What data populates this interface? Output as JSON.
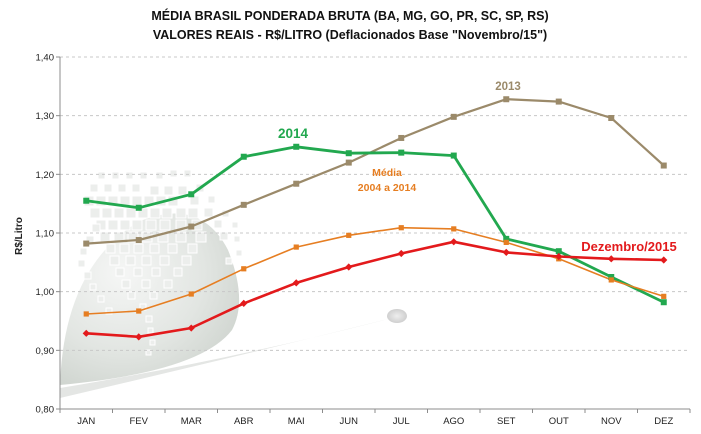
{
  "chart_data": {
    "type": "line",
    "title": "MÉDIA BRASIL PONDERADA BRUTA (BA, MG, GO, PR, SC, SP, RS)",
    "subtitle": "VALORES REAIS - R$/LITRO (Deflacionados Base \"Novembro/15\")",
    "xlabel": "",
    "ylabel": "R$/Litro",
    "ylim": [
      0.8,
      1.4
    ],
    "yticks": [
      "0,80",
      "0,90",
      "1,00",
      "1,10",
      "1,20",
      "1,30",
      "1,40"
    ],
    "ytick_values": [
      0.8,
      0.9,
      1.0,
      1.1,
      1.2,
      1.3,
      1.4
    ],
    "grid": true,
    "categories": [
      "JAN",
      "FEV",
      "MAR",
      "ABR",
      "MAI",
      "JUN",
      "JUL",
      "AGO",
      "SET",
      "OUT",
      "NOV",
      "DEZ"
    ],
    "series": [
      {
        "name": "2013",
        "label": "2013",
        "color": "#9b8a6a",
        "marker": "square",
        "values": [
          1.082,
          1.088,
          1.111,
          1.148,
          1.184,
          1.22,
          1.262,
          1.298,
          1.328,
          1.324,
          1.296,
          1.215
        ]
      },
      {
        "name": "2014",
        "label": "2014",
        "color": "#22a84f",
        "marker": "square",
        "values": [
          1.155,
          1.143,
          1.166,
          1.23,
          1.247,
          1.236,
          1.237,
          1.232,
          1.09,
          1.069,
          1.025,
          0.982
        ]
      },
      {
        "name": "Média 2004 a 2014",
        "label": "Média",
        "label2": "2004 a 2014",
        "color": "#e67e22",
        "marker": "square",
        "values": [
          0.962,
          0.967,
          0.996,
          1.039,
          1.076,
          1.096,
          1.109,
          1.107,
          1.084,
          1.056,
          1.02,
          0.992
        ]
      },
      {
        "name": "Dezembro/2015",
        "label": "Dezembro/2015",
        "color": "#e31a1c",
        "marker": "diamond",
        "values": [
          0.929,
          0.923,
          0.938,
          0.98,
          1.015,
          1.042,
          1.065,
          1.085,
          1.067,
          1.06,
          1.056,
          1.054
        ]
      }
    ]
  }
}
